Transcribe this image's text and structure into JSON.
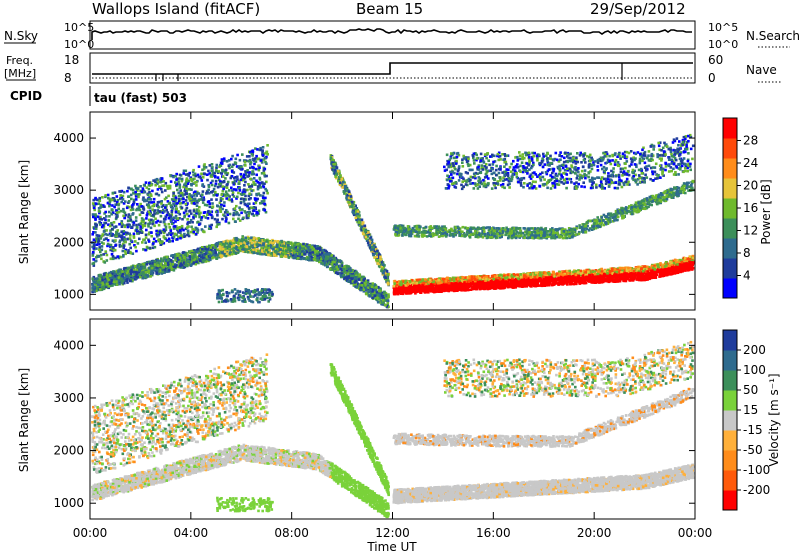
{
  "header": {
    "station": "Wallops Island (fitACF)",
    "beam": "Beam 15",
    "date": "29/Sep/2012"
  },
  "top_panel": {
    "nsky_label": "N.Sky",
    "nsky_ticks": [
      "10^5",
      "10^0"
    ],
    "nsearch_label": "N.Search",
    "nsearch_ticks": [
      "10^5",
      "10^0"
    ],
    "freq_label": "Freq.",
    "freq_unit": "[MHz]",
    "freq_ticks": [
      "18",
      "8"
    ],
    "nave_label": "Nave",
    "nave_ticks": [
      "60",
      "0"
    ],
    "cpid_label": "CPID",
    "cpid_text": "tau (fast) 503"
  },
  "colors": {
    "power_scale": [
      "#0000ff",
      "#1f3c9c",
      "#2e6b8e",
      "#3c8f5a",
      "#6fba2d",
      "#e6c43a",
      "#ff8c1a",
      "#ff4a0a",
      "#ff0000"
    ],
    "velocity_scale": [
      "#1f3c9c",
      "#2e6b8e",
      "#3c8f5a",
      "#7ad23a",
      "#c8c8c8",
      "#ffb03a",
      "#ff8c1a",
      "#ff5a0a",
      "#ff0000"
    ]
  },
  "chart_data": [
    {
      "type": "heatmap",
      "title": "Power",
      "xlabel": "",
      "ylabel": "Slant Range [km]",
      "y_ticks": [
        "1000",
        "2000",
        "3000",
        "4000"
      ],
      "ylim": [
        700,
        4500
      ],
      "xlim_hours": [
        0,
        24
      ],
      "colorbar": {
        "label": "Power [dB]",
        "ticks": [
          "4",
          "8",
          "12",
          "16",
          "20",
          "24",
          "28"
        ],
        "range": [
          0,
          32
        ]
      },
      "description_bands": [
        {
          "start_hour": 0,
          "end_hour": 11.8,
          "range_km_start": 1150,
          "range_km_end": 880,
          "note": "lower scatter band"
        },
        {
          "start_hour": 12,
          "end_hour": 24,
          "range_km_start": 1100,
          "range_km_end": 1550,
          "note": "strong echoes"
        }
      ]
    },
    {
      "type": "heatmap",
      "title": "Velocity",
      "xlabel": "Time UT",
      "ylabel": "Slant Range [km]",
      "y_ticks": [
        "1000",
        "2000",
        "3000",
        "4000"
      ],
      "ylim": [
        700,
        4500
      ],
      "xlim_hours": [
        0,
        24
      ],
      "x_ticks": [
        "00:00",
        "04:00",
        "08:00",
        "12:00",
        "16:00",
        "20:00",
        "00:00"
      ],
      "colorbar": {
        "label": "Velocity [m s⁻¹]",
        "ticks": [
          "200",
          "100",
          "50",
          "15",
          "-15",
          "-50",
          "-100",
          "-200"
        ]
      }
    }
  ]
}
